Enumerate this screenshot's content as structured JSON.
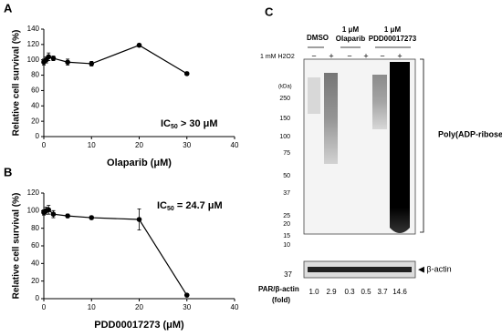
{
  "chart_data": [
    {
      "type": "line",
      "panel": "A",
      "xlabel": "Olaparib (μM)",
      "ylabel": "Relative cell survival (%)",
      "annotation": {
        "main": "IC",
        "sub": "50",
        "rest": " > 30 μM"
      },
      "x": [
        0,
        0.5,
        1,
        2,
        5,
        10,
        20,
        30
      ],
      "values": [
        97,
        100,
        104,
        102,
        97,
        95,
        119,
        82
      ],
      "errors": [
        4,
        4,
        5,
        3,
        4,
        3,
        2,
        2
      ],
      "color": "#000000",
      "xlim": [
        0,
        40
      ],
      "ylim": [
        0,
        140
      ],
      "xticks": [
        0,
        10,
        20,
        30,
        40
      ],
      "yticks": [
        0,
        20,
        40,
        60,
        80,
        100,
        120,
        140
      ]
    },
    {
      "type": "line",
      "panel": "B",
      "xlabel": "PDD00017273 (μM)",
      "ylabel": "Relative cell survival (%)",
      "annotation": {
        "main": "IC",
        "sub": "50",
        "rest": " = 24.7 μM"
      },
      "x": [
        0,
        0.5,
        1,
        2,
        5,
        10,
        20,
        30
      ],
      "values": [
        98,
        100,
        101,
        96,
        94,
        92,
        90,
        4
      ],
      "errors": [
        3,
        4,
        5,
        4,
        2,
        2,
        12,
        1
      ],
      "color": "#000000",
      "xlim": [
        0,
        40
      ],
      "ylim": [
        0,
        120
      ],
      "xticks": [
        0,
        10,
        20,
        30,
        40
      ],
      "yticks": [
        0,
        20,
        40,
        60,
        80,
        100,
        120
      ]
    }
  ],
  "blot": {
    "panel": "C",
    "treatment": "1 mM H2O2",
    "groups": [
      "DMSO",
      "1 μM Olaparib",
      "1 μM PDD00017273"
    ],
    "signs": [
      "−",
      "+",
      "−",
      "+",
      "−",
      "+"
    ],
    "kda_title": "(kDa)",
    "kda": [
      "250",
      "150",
      "100",
      "75",
      "50",
      "37",
      "25",
      "20",
      "15",
      "10"
    ],
    "target": "Poly(ADP-ribose)",
    "actin_kda": "37",
    "actin": "◀ β-actin",
    "ratio_label": "PAR/β-actin",
    "ratio_unit": "(fold)",
    "ratios": [
      "1.0",
      "2.9",
      "0.3",
      "0.5",
      "3.7",
      "14.6"
    ]
  }
}
